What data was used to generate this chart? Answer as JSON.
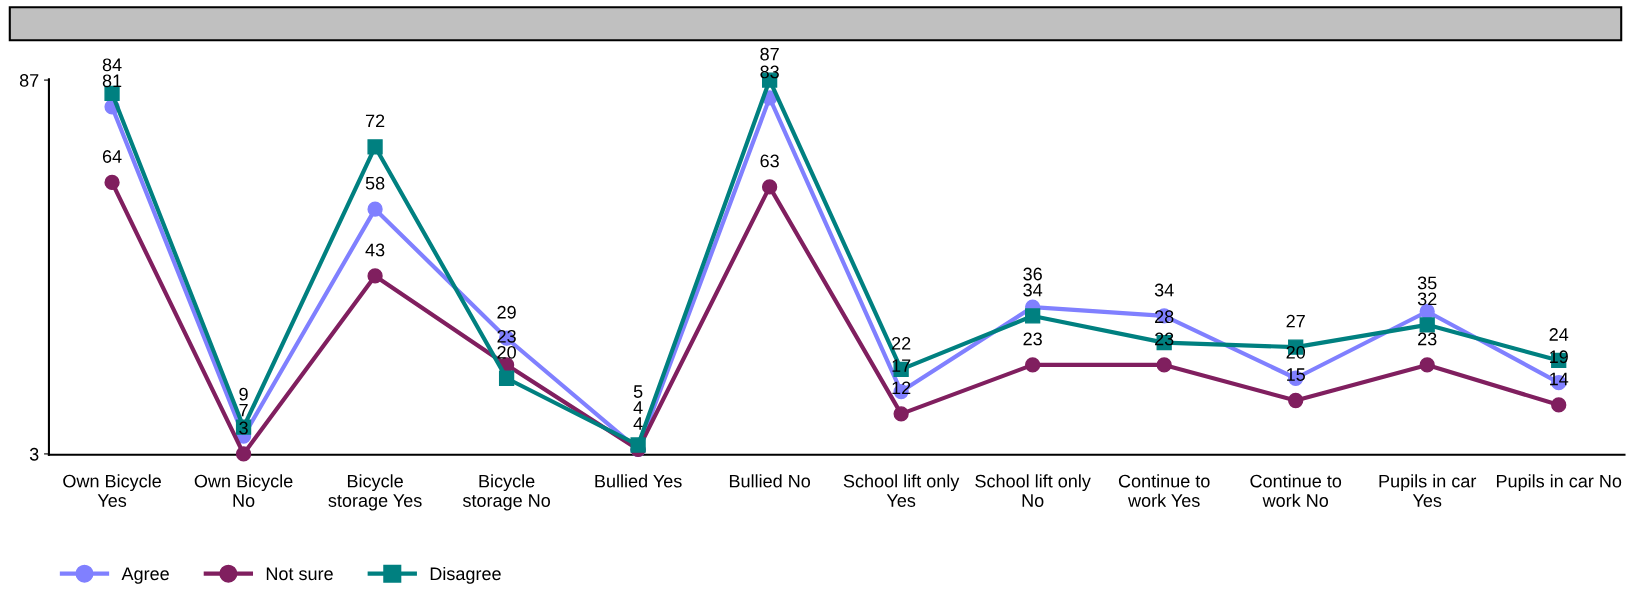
{
  "chart_data": {
    "type": "line",
    "categories": [
      "Own Bicycle\nYes",
      "Own Bicycle\nNo",
      "Bicycle\nstorage Yes",
      "Bicycle\nstorage No",
      "Bullied Yes",
      "Bullied No",
      "School lift only\nYes",
      "School lift only\nNo",
      "Continue to\nwork Yes",
      "Continue to\nwork No",
      "Pupils in car\nYes",
      "Pupils in car No"
    ],
    "series": [
      {
        "name": "Agree",
        "color": "#8080ff",
        "marker": "circle",
        "values": [
          81,
          7,
          58,
          29,
          4,
          83,
          17,
          36,
          34,
          20,
          35,
          19
        ]
      },
      {
        "name": "Not sure",
        "color": "#801f5f",
        "marker": "circle",
        "values": [
          64,
          3,
          43,
          23,
          4,
          63,
          12,
          23,
          23,
          15,
          23,
          14
        ]
      },
      {
        "name": "Disagree",
        "color": "#008080",
        "marker": "square",
        "values": [
          84,
          9,
          72,
          20,
          5,
          87,
          22,
          34,
          28,
          27,
          32,
          24
        ]
      }
    ],
    "ylim": [
      2.8,
      87.2
    ],
    "yticks": [
      3,
      87
    ],
    "grid": false,
    "legend": "bottom",
    "data_labels": true,
    "line_style": "solid"
  }
}
